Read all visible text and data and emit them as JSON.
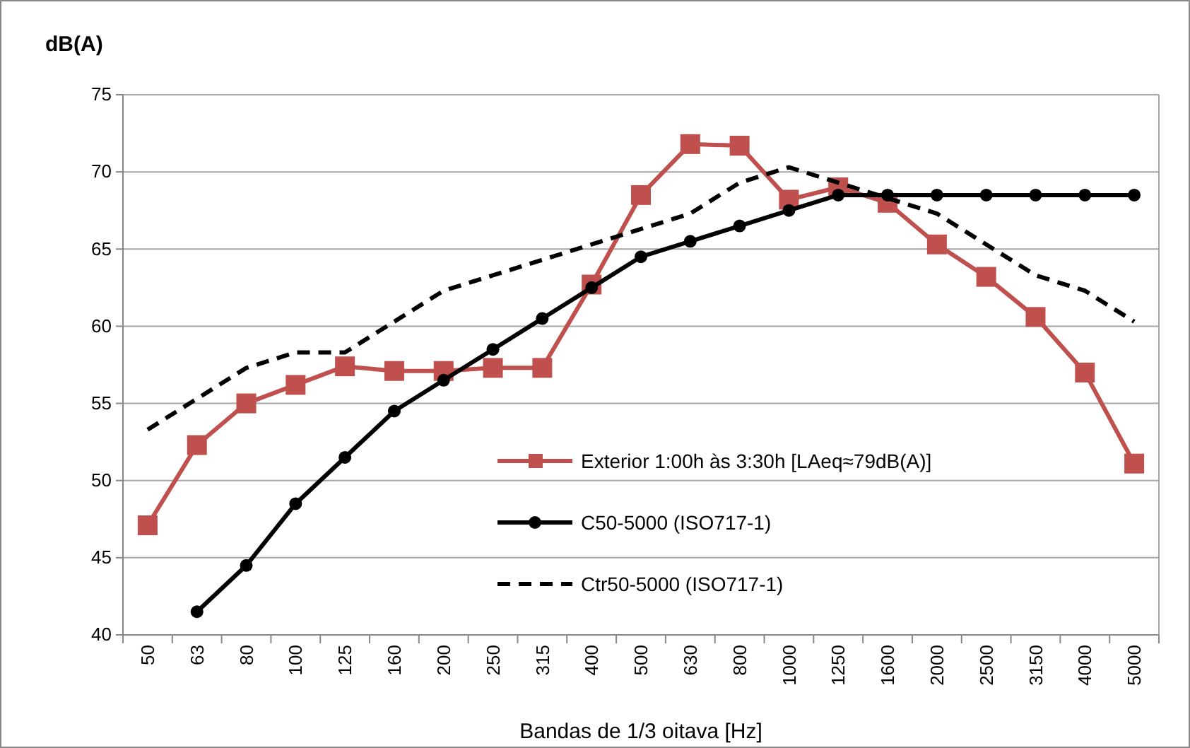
{
  "chart_data": {
    "type": "line",
    "ylabel": "dB(A)",
    "xlabel": "Bandas de 1/3 oitava [Hz]",
    "categories": [
      "50",
      "63",
      "80",
      "100",
      "125",
      "160",
      "200",
      "250",
      "315",
      "400",
      "500",
      "630",
      "800",
      "1000",
      "1250",
      "1600",
      "2000",
      "2500",
      "3150",
      "4000",
      "5000"
    ],
    "ylim": [
      40,
      75
    ],
    "yticks": [
      40,
      45,
      50,
      55,
      60,
      65,
      70,
      75
    ],
    "grid": "y",
    "legend": "bottom",
    "series": [
      {
        "name": "Exterior 1:00h às 3:30h [LAeq≈79dB(A)]",
        "color": "#c0504d",
        "marker": "square",
        "line_style": "solid",
        "values": [
          47.1,
          52.3,
          55.0,
          56.2,
          57.4,
          57.1,
          57.1,
          57.3,
          57.3,
          62.7,
          68.5,
          71.8,
          71.7,
          68.2,
          69.0,
          68.0,
          65.3,
          63.2,
          60.6,
          57.0,
          51.1
        ]
      },
      {
        "name": "C50-5000 (ISO717-1)",
        "color": "#000000",
        "marker": "circle",
        "line_style": "solid",
        "values": [
          null,
          41.5,
          44.5,
          48.5,
          51.5,
          54.5,
          56.5,
          58.5,
          60.5,
          62.5,
          64.5,
          65.5,
          66.5,
          67.5,
          68.5,
          68.5,
          68.5,
          68.5,
          68.5,
          68.5,
          68.5
        ]
      },
      {
        "name": "Ctr50-5000 (ISO717-1)",
        "color": "#000000",
        "marker": "none",
        "line_style": "dashed",
        "values": [
          53.3,
          55.3,
          57.3,
          58.3,
          58.3,
          60.3,
          62.3,
          63.3,
          64.3,
          65.3,
          66.3,
          67.3,
          69.3,
          70.3,
          69.3,
          68.3,
          67.3,
          65.3,
          63.3,
          62.3,
          60.3
        ]
      }
    ]
  }
}
